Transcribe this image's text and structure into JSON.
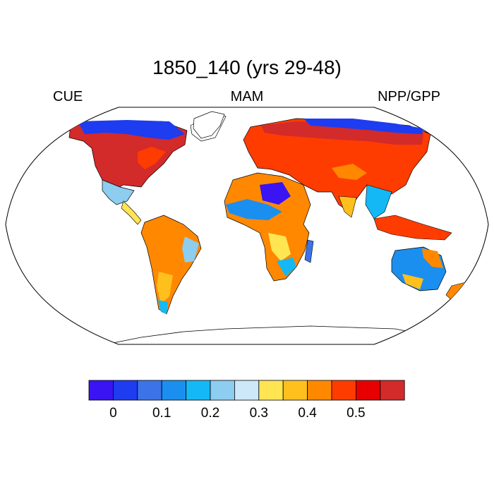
{
  "title": "1850_140 (yrs 29-48)",
  "left_string": "CUE",
  "center_string": "MAM",
  "right_string": "NPP/GPP",
  "colorbar": {
    "colors": [
      "#3a14f2",
      "#1e3cf0",
      "#3c73e8",
      "#1a8ff0",
      "#14b8f5",
      "#8ccdf0",
      "#cde8f8",
      "#ffe552",
      "#ffc01e",
      "#ff8800",
      "#ff3c00",
      "#e60000",
      "#d32a2a"
    ],
    "tick_labels": [
      "0",
      "0.1",
      "0.2",
      "0.3",
      "0.4",
      "0.5"
    ],
    "tick_values": [
      0,
      0.1,
      0.2,
      0.3,
      0.4,
      0.5
    ]
  },
  "map": {
    "projection": "robinson",
    "field": "CUE (NPP/GPP)",
    "season": "MAM"
  }
}
